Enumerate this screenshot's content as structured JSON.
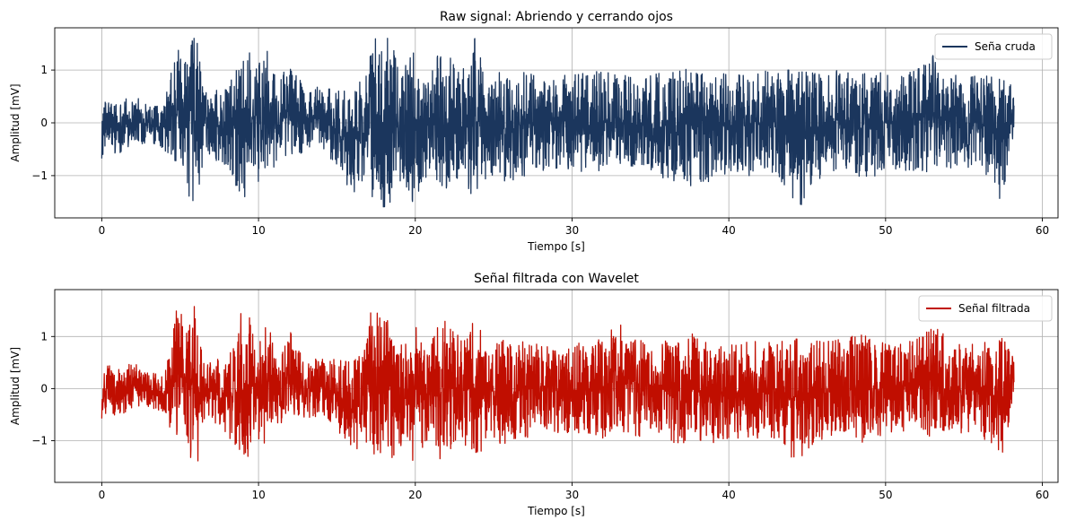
{
  "chart_data": [
    {
      "type": "line",
      "title": "Raw signal: Abriendo y cerrando ojos",
      "xlabel": "Tiempo [s]",
      "ylabel": "Amplitud [mV]",
      "xlim": [
        -3,
        61
      ],
      "ylim": [
        -1.8,
        1.8
      ],
      "xticks": [
        0,
        10,
        20,
        30,
        40,
        50,
        60
      ],
      "yticks": [
        -1,
        0,
        1
      ],
      "xtick_labels": [
        "0",
        "10",
        "20",
        "30",
        "40",
        "50",
        "60"
      ],
      "ytick_labels": [
        "−1",
        "0",
        "1"
      ],
      "grid": true,
      "legend_position": "top-right",
      "duration": 58.2,
      "series": [
        {
          "name": "Seña cruda",
          "color": "#1b365d",
          "envelope": {
            "x": [
              0,
              0.3,
              1,
              2,
              3,
              4,
              4.7,
              5.2,
              5.7,
              6.1,
              6.6,
              7.2,
              8,
              8.6,
              8.9,
              9.3,
              9.8,
              10.2,
              10.6,
              11.2,
              12,
              13,
              14,
              15,
              16,
              16.8,
              17.2,
              17.6,
              18,
              18.4,
              18.8,
              19.3,
              19.8,
              20.4,
              21,
              21.8,
              22.4,
              23,
              23.8,
              24.6,
              25.4,
              26.2,
              27,
              28,
              30,
              32,
              33,
              35,
              37.7,
              40,
              43,
              44.5,
              46,
              47,
              48.7,
              50,
              51,
              52,
              53.3,
              54,
              56,
              57.4,
              57.8,
              58.2
            ],
            "max": [
              0.1,
              0.5,
              0.45,
              0.55,
              0.3,
              0.35,
              1.6,
              1.5,
              1.6,
              1.6,
              0.6,
              0.6,
              0.7,
              1.0,
              1.6,
              1.6,
              1.0,
              1.2,
              1.4,
              0.7,
              1.2,
              0.6,
              0.7,
              0.6,
              0.6,
              0.9,
              1.6,
              1.6,
              1.6,
              1.6,
              1.2,
              1.0,
              1.5,
              1.0,
              0.9,
              1.6,
              1.2,
              1.0,
              1.6,
              0.9,
              1.0,
              0.9,
              1.0,
              0.9,
              0.9,
              1.0,
              0.9,
              0.9,
              1.1,
              0.9,
              1.0,
              1.0,
              0.9,
              1.0,
              1.1,
              0.9,
              0.9,
              1.0,
              1.35,
              0.9,
              0.9,
              0.85,
              0.8,
              0.7
            ],
            "min": [
              -0.7,
              -0.5,
              -0.6,
              -0.4,
              -0.4,
              -0.5,
              -1.1,
              -0.8,
              -1.6,
              -1.6,
              -0.5,
              -0.7,
              -1.0,
              -1.2,
              -1.4,
              -1.5,
              -0.8,
              -1.5,
              -0.9,
              -0.8,
              -0.6,
              -0.6,
              -0.6,
              -0.8,
              -1.4,
              -1.0,
              -1.4,
              -1.5,
              -1.6,
              -1.5,
              -1.2,
              -1.1,
              -1.5,
              -1.2,
              -1.0,
              -1.6,
              -1.2,
              -1.0,
              -1.5,
              -1.0,
              -1.1,
              -1.1,
              -1.0,
              -0.9,
              -0.9,
              -1.0,
              -0.9,
              -1.0,
              -1.2,
              -1.0,
              -1.0,
              -1.6,
              -1.0,
              -0.9,
              -1.1,
              -0.9,
              -0.9,
              -0.9,
              -1.0,
              -0.9,
              -0.9,
              -1.5,
              -0.8,
              -0.2
            ]
          }
        }
      ]
    },
    {
      "type": "line",
      "title": "Señal filtrada con Wavelet",
      "xlabel": "Tiempo [s]",
      "ylabel": "Amplitud [mV]",
      "xlim": [
        -3,
        61
      ],
      "ylim": [
        -1.8,
        1.9
      ],
      "xticks": [
        0,
        10,
        20,
        30,
        40,
        50,
        60
      ],
      "yticks": [
        -1,
        0,
        1
      ],
      "xtick_labels": [
        "0",
        "10",
        "20",
        "30",
        "40",
        "50",
        "60"
      ],
      "ytick_labels": [
        "−1",
        "0",
        "1"
      ],
      "grid": true,
      "legend_position": "top-right",
      "duration": 58.2,
      "series": [
        {
          "name": "Señal filtrada",
          "color": "#c00e00",
          "envelope": {
            "x": [
              0,
              0.3,
              1,
              2,
              3,
              4,
              4.7,
              5.2,
              5.7,
              6.1,
              6.6,
              7.2,
              8,
              8.6,
              8.9,
              9.3,
              9.8,
              10.2,
              10.6,
              11.2,
              12,
              13,
              14,
              15,
              16,
              16.8,
              17.2,
              17.6,
              18,
              18.4,
              18.8,
              19.3,
              19.8,
              20.4,
              21,
              21.8,
              22.4,
              23,
              23.8,
              24.6,
              25.4,
              26.2,
              27,
              28,
              30,
              32,
              33,
              35,
              37.7,
              40,
              43,
              44.5,
              46,
              47,
              48.7,
              50,
              51,
              52,
              53.3,
              54,
              56,
              57.4,
              57.8,
              58.2
            ],
            "max": [
              0.1,
              0.45,
              0.4,
              0.5,
              0.3,
              0.3,
              1.5,
              1.4,
              1.6,
              1.55,
              0.5,
              0.55,
              0.6,
              0.9,
              1.6,
              1.55,
              0.9,
              1.1,
              1.3,
              0.6,
              1.1,
              0.55,
              0.6,
              0.55,
              0.5,
              0.8,
              1.6,
              1.6,
              1.6,
              1.55,
              1.1,
              0.9,
              1.45,
              0.9,
              0.85,
              1.55,
              1.1,
              0.95,
              1.5,
              0.85,
              0.95,
              0.85,
              0.95,
              0.85,
              0.85,
              0.95,
              1.4,
              0.85,
              1.05,
              0.85,
              0.95,
              0.95,
              0.9,
              0.95,
              1.05,
              0.85,
              0.85,
              0.95,
              1.3,
              0.85,
              0.85,
              1.0,
              0.8,
              0.6
            ],
            "min": [
              -0.6,
              -0.45,
              -0.55,
              -0.35,
              -0.35,
              -0.45,
              -1.05,
              -0.75,
              -1.5,
              -1.6,
              -0.45,
              -0.65,
              -0.9,
              -1.1,
              -1.3,
              -1.4,
              -0.7,
              -1.35,
              -0.85,
              -0.75,
              -0.55,
              -0.55,
              -0.55,
              -0.75,
              -1.35,
              -0.95,
              -1.35,
              -1.45,
              -1.55,
              -1.45,
              -1.15,
              -1.05,
              -1.45,
              -1.15,
              -0.95,
              -1.5,
              -1.15,
              -0.95,
              -1.5,
              -0.95,
              -1.05,
              -1.05,
              -0.95,
              -0.85,
              -0.85,
              -0.95,
              -0.85,
              -0.95,
              -1.15,
              -0.95,
              -0.95,
              -1.5,
              -0.95,
              -0.85,
              -1.05,
              -0.85,
              -0.85,
              -0.85,
              -0.95,
              -0.85,
              -0.85,
              -1.4,
              -0.8,
              -0.1
            ]
          }
        }
      ]
    }
  ]
}
